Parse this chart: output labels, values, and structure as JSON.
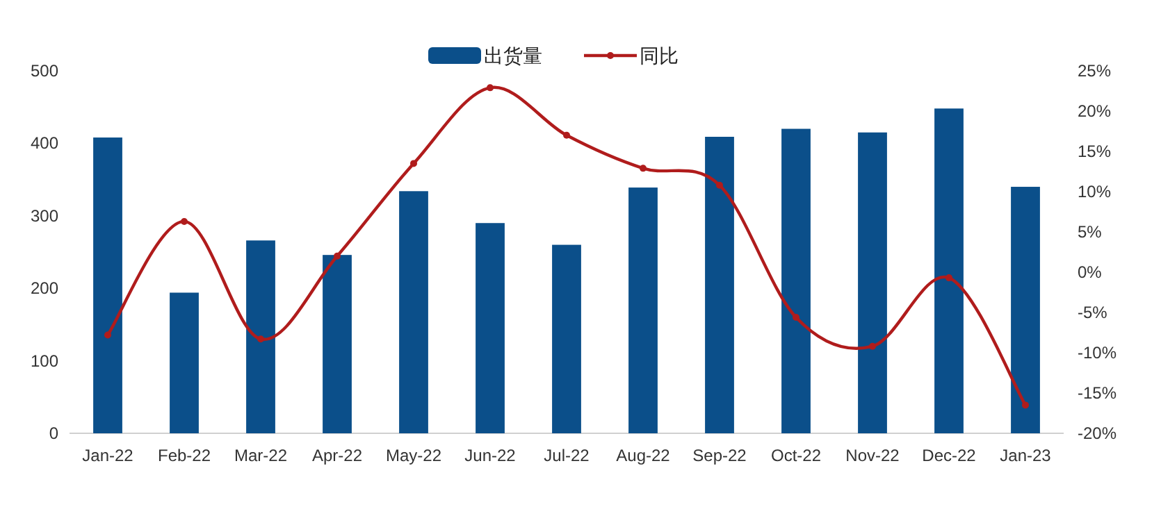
{
  "chart_data": {
    "type": "bar",
    "categories": [
      "Jan-22",
      "Feb-22",
      "Mar-22",
      "Apr-22",
      "May-22",
      "Jun-22",
      "Jul-22",
      "Aug-22",
      "Sep-22",
      "Oct-22",
      "Nov-22",
      "Dec-22",
      "Jan-23"
    ],
    "series": [
      {
        "name": "出货量",
        "type": "bar",
        "color": "#0b4f8a",
        "values": [
          408,
          194,
          266,
          246,
          334,
          290,
          260,
          339,
          409,
          420,
          415,
          448,
          340
        ]
      },
      {
        "name": "同比",
        "type": "line",
        "axis": "y2",
        "color": "#b01c1c",
        "values": [
          -7.8,
          6.3,
          -8.3,
          2,
          13.5,
          22.9,
          17,
          12.9,
          10.8,
          -5.6,
          -9.2,
          -0.7,
          -16.5
        ]
      }
    ],
    "ylim": [
      0,
      500
    ],
    "yticks": [
      0,
      100,
      200,
      300,
      400,
      500
    ],
    "y2lim": [
      -20,
      25
    ],
    "y2ticks": [
      {
        "value": -20,
        "label": "-20%"
      },
      {
        "value": -15,
        "label": "-15%"
      },
      {
        "value": -10,
        "label": "-10%"
      },
      {
        "value": -5,
        "label": "-5%"
      },
      {
        "value": 0,
        "label": "0%"
      },
      {
        "value": 5,
        "label": "5%"
      },
      {
        "value": 10,
        "label": "10%"
      },
      {
        "value": 15,
        "label": "15%"
      },
      {
        "value": 20,
        "label": "20%"
      },
      {
        "value": 25,
        "label": "25%"
      }
    ],
    "legend": "top",
    "marker": "circle",
    "grid": false
  }
}
